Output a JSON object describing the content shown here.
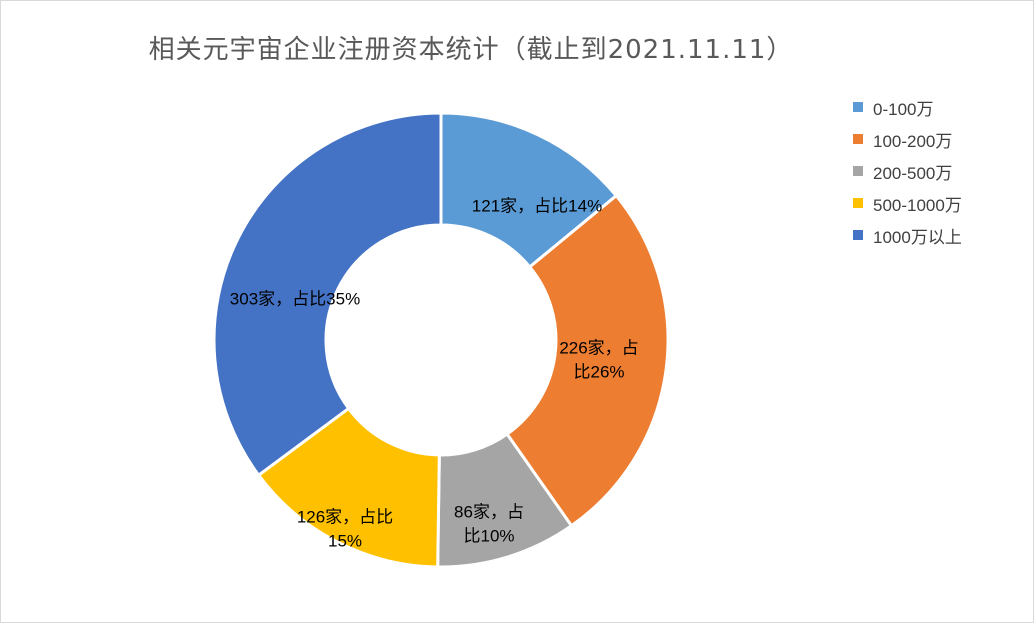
{
  "chart_data": {
    "type": "pie",
    "variant": "doughnut",
    "title": "相关元宇宙企业注册资本统计（截止到2021.11.11）",
    "legend_position": "right",
    "categories": [
      "0-100万",
      "100-200万",
      "200-500万",
      "500-1000万",
      "1000万以上"
    ],
    "values": [
      121,
      226,
      86,
      126,
      303
    ],
    "colors": [
      "#5B9BD5",
      "#ED7D31",
      "#A5A5A5",
      "#FFC000",
      "#4472C4"
    ],
    "data_labels": [
      [
        "121家，占比14%"
      ],
      [
        "226家，占",
        "比26%"
      ],
      [
        "86家，占",
        "比10%"
      ],
      [
        "126家，占比",
        "15%"
      ],
      [
        "303家，占比35%"
      ]
    ]
  }
}
